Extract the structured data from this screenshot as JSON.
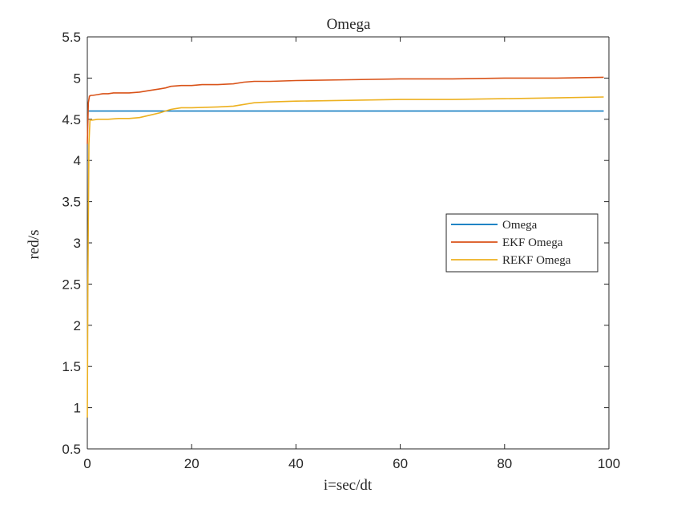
{
  "chart_data": {
    "type": "line",
    "title": "Omega",
    "xlabel": "i=sec/dt",
    "ylabel": "red/s",
    "xlim": [
      0,
      100
    ],
    "ylim": [
      0.5,
      5.5
    ],
    "xticks": [
      0,
      20,
      40,
      60,
      80,
      100
    ],
    "yticks": [
      0.5,
      1,
      1.5,
      2,
      2.5,
      3,
      3.5,
      4,
      4.5,
      5,
      5.5
    ],
    "grid": false,
    "legend_position": "right",
    "series": [
      {
        "name": "Omega",
        "color": "#0072BD",
        "x": [
          0,
          99
        ],
        "y": [
          4.6,
          4.6
        ]
      },
      {
        "name": "EKF Omega",
        "color": "#D95319",
        "x": [
          0,
          0.2,
          0.4,
          0.7,
          1,
          2,
          3,
          4,
          5,
          6,
          8,
          10,
          12,
          13,
          14,
          15,
          16,
          18,
          20,
          22,
          25,
          28,
          30,
          32,
          35,
          40,
          50,
          60,
          70,
          80,
          90,
          99
        ],
        "y": [
          4.2,
          4.7,
          4.78,
          4.79,
          4.79,
          4.8,
          4.81,
          4.81,
          4.82,
          4.82,
          4.82,
          4.83,
          4.85,
          4.86,
          4.87,
          4.88,
          4.9,
          4.91,
          4.91,
          4.92,
          4.92,
          4.93,
          4.95,
          4.96,
          4.96,
          4.97,
          4.98,
          4.99,
          4.99,
          5.0,
          5.0,
          5.01
        ]
      },
      {
        "name": "REKF Omega",
        "color": "#EDB120",
        "x": [
          0,
          0.1,
          0.3,
          0.5,
          1,
          2,
          4,
          6,
          8,
          10,
          12,
          14,
          15,
          16,
          17,
          18,
          20,
          25,
          28,
          30,
          32,
          35,
          40,
          50,
          60,
          70,
          80,
          90,
          99
        ],
        "y": [
          0.88,
          2.5,
          4.2,
          4.49,
          4.49,
          4.5,
          4.5,
          4.51,
          4.51,
          4.52,
          4.55,
          4.58,
          4.6,
          4.62,
          4.63,
          4.64,
          4.64,
          4.65,
          4.66,
          4.68,
          4.7,
          4.71,
          4.72,
          4.73,
          4.74,
          4.74,
          4.75,
          4.76,
          4.77
        ]
      }
    ]
  }
}
